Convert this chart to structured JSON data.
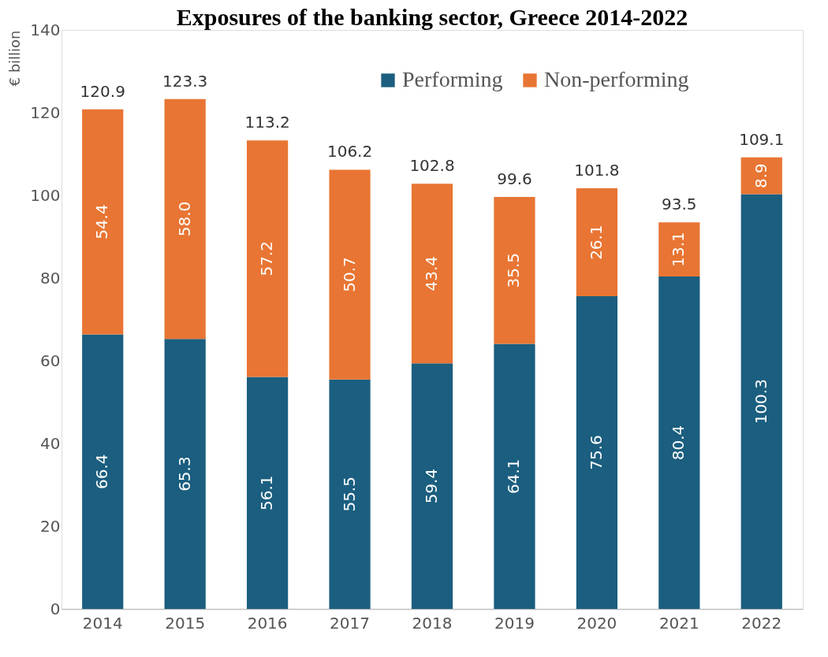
{
  "chart_data": {
    "type": "bar",
    "title": "Exposures of the banking sector, Greece 2014-2022",
    "ylabel": "€ billion",
    "categories": [
      "2014",
      "2015",
      "2016",
      "2017",
      "2018",
      "2019",
      "2020",
      "2021",
      "2022"
    ],
    "series": [
      {
        "name": "Performing",
        "color": "#1b5e7f",
        "values": [
          66.4,
          65.3,
          56.1,
          55.5,
          59.4,
          64.1,
          75.6,
          80.4,
          100.3
        ],
        "value_labels": [
          "66.4",
          "65.3",
          "56.1",
          "55.5",
          "59.4",
          "64.1",
          "75.6",
          "80.4",
          "100.3"
        ]
      },
      {
        "name": "Non-performing",
        "color": "#e87533",
        "values": [
          54.4,
          58.0,
          57.2,
          50.7,
          43.4,
          35.5,
          26.1,
          13.1,
          8.9
        ],
        "value_labels": [
          "54.4",
          "58.0",
          "57.2",
          "50.7",
          "43.4",
          "35.5",
          "26.1",
          "13.1",
          "8.9"
        ]
      }
    ],
    "stacked": true,
    "totals": [
      "120.9",
      "123.3",
      "113.2",
      "106.2",
      "102.8",
      "99.6",
      "101.8",
      "93.5",
      "109.1"
    ],
    "ylim": [
      0,
      140
    ],
    "yticks": [
      0,
      20,
      40,
      60,
      80,
      100,
      120,
      140
    ],
    "grid": false,
    "legend": "top right"
  }
}
